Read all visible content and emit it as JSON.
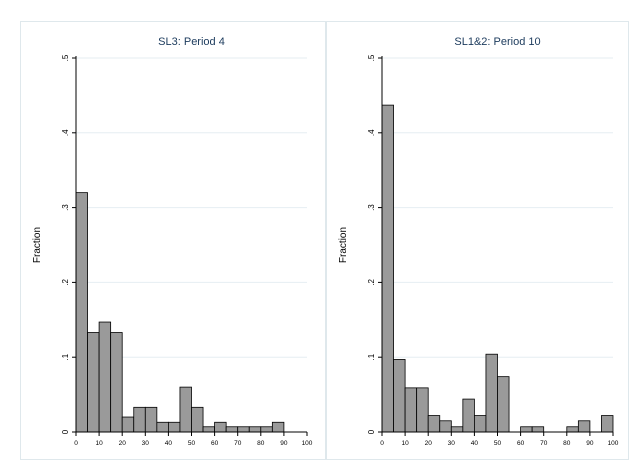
{
  "chart_data": [
    {
      "type": "bar",
      "title": "SL3: Period 4",
      "ylabel": "Fraction",
      "xlabel": "",
      "xlim": [
        0,
        100
      ],
      "ylim": [
        0,
        0.5
      ],
      "bin_width": 5,
      "xticks": [
        "0",
        "10",
        "20",
        "30",
        "40",
        "50",
        "60",
        "70",
        "80",
        "90",
        "100"
      ],
      "yticks": [
        "0",
        ".1",
        ".2",
        ".3",
        ".4",
        ".5"
      ],
      "grid": true,
      "bins": [
        {
          "x": 0,
          "value": 0.32
        },
        {
          "x": 5,
          "value": 0.133
        },
        {
          "x": 10,
          "value": 0.147
        },
        {
          "x": 15,
          "value": 0.133
        },
        {
          "x": 20,
          "value": 0.02
        },
        {
          "x": 25,
          "value": 0.033
        },
        {
          "x": 30,
          "value": 0.033
        },
        {
          "x": 35,
          "value": 0.013
        },
        {
          "x": 40,
          "value": 0.013
        },
        {
          "x": 45,
          "value": 0.06
        },
        {
          "x": 50,
          "value": 0.033
        },
        {
          "x": 55,
          "value": 0.007
        },
        {
          "x": 60,
          "value": 0.013
        },
        {
          "x": 65,
          "value": 0.007
        },
        {
          "x": 70,
          "value": 0.007
        },
        {
          "x": 75,
          "value": 0.007
        },
        {
          "x": 80,
          "value": 0.007
        },
        {
          "x": 85,
          "value": 0.013
        }
      ]
    },
    {
      "type": "bar",
      "title": "SL1&2: Period 10",
      "ylabel": "Fraction",
      "xlabel": "",
      "xlim": [
        0,
        100
      ],
      "ylim": [
        0,
        0.5
      ],
      "bin_width": 5,
      "xticks": [
        "0",
        "10",
        "20",
        "30",
        "40",
        "50",
        "60",
        "70",
        "80",
        "90",
        "100"
      ],
      "yticks": [
        "0",
        ".1",
        ".2",
        ".3",
        ".4",
        ".5"
      ],
      "grid": true,
      "bins": [
        {
          "x": 0,
          "value": 0.437
        },
        {
          "x": 5,
          "value": 0.097
        },
        {
          "x": 10,
          "value": 0.059
        },
        {
          "x": 15,
          "value": 0.059
        },
        {
          "x": 20,
          "value": 0.022
        },
        {
          "x": 25,
          "value": 0.015
        },
        {
          "x": 30,
          "value": 0.007
        },
        {
          "x": 35,
          "value": 0.044
        },
        {
          "x": 40,
          "value": 0.022
        },
        {
          "x": 45,
          "value": 0.104
        },
        {
          "x": 50,
          "value": 0.074
        },
        {
          "x": 60,
          "value": 0.007
        },
        {
          "x": 65,
          "value": 0.007
        },
        {
          "x": 80,
          "value": 0.007
        },
        {
          "x": 85,
          "value": 0.015
        },
        {
          "x": 95,
          "value": 0.022
        }
      ]
    }
  ],
  "colors": {
    "bar_fill": "#9a9a9a",
    "bar_stroke": "#000000",
    "grid": "#e6eef2",
    "panel_border": "#dfe8ec",
    "axis": "#000000",
    "title": "#1b3a5c"
  }
}
